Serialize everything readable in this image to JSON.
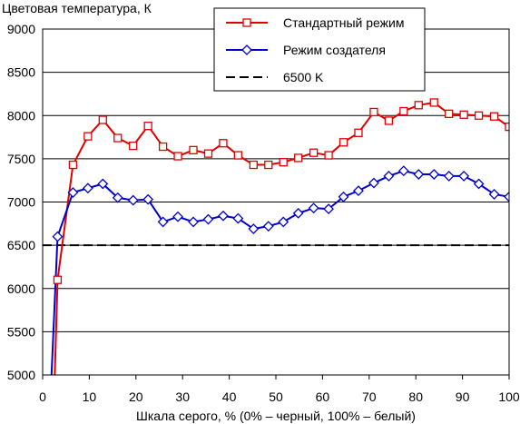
{
  "chart_data": {
    "type": "line",
    "ylabel": "Цветовая температура, К",
    "xlabel": "Шкала серого, % (0% – черный, 100% – белый)",
    "xlim": [
      0,
      100
    ],
    "ylim": [
      5000,
      9000
    ],
    "xticks": [
      0,
      10,
      20,
      30,
      40,
      50,
      60,
      70,
      80,
      90,
      100
    ],
    "yticks": [
      5000,
      5500,
      6000,
      6500,
      7000,
      7500,
      8000,
      8500,
      9000
    ],
    "grid": "horizontal",
    "legend_position": "top-right",
    "legend": [
      {
        "label": "Стандартный режим",
        "color": "#e00000",
        "marker": "square",
        "style": "solid"
      },
      {
        "label": "Режим создателя",
        "color": "#0000cc",
        "marker": "diamond",
        "style": "solid"
      },
      {
        "label": "6500 K",
        "color": "#000000",
        "marker": "none",
        "style": "dashed"
      }
    ],
    "series": [
      {
        "name": "Стандартный режим",
        "color": "#e00000",
        "marker": "square",
        "x": [
          3.2,
          6.5,
          9.7,
          12.9,
          16.1,
          19.4,
          22.6,
          25.8,
          29.0,
          32.3,
          35.5,
          38.7,
          41.9,
          45.2,
          48.4,
          51.6,
          54.8,
          58.1,
          61.3,
          64.5,
          67.7,
          71.0,
          74.2,
          77.4,
          80.6,
          83.9,
          87.1,
          90.3,
          93.5,
          96.8,
          100.0
        ],
        "y": [
          6100,
          7430,
          7760,
          7950,
          7740,
          7650,
          7880,
          7640,
          7530,
          7600,
          7560,
          7680,
          7540,
          7430,
          7430,
          7460,
          7510,
          7570,
          7540,
          7690,
          7800,
          8040,
          7940,
          8050,
          8120,
          8150,
          8020,
          8010,
          8000,
          7990,
          7870
        ]
      },
      {
        "name": "Режим создателя",
        "color": "#0000cc",
        "marker": "diamond",
        "x": [
          3.2,
          6.5,
          9.7,
          12.9,
          16.1,
          19.4,
          22.6,
          25.8,
          29.0,
          32.3,
          35.5,
          38.7,
          41.9,
          45.2,
          48.4,
          51.6,
          54.8,
          58.1,
          61.3,
          64.5,
          67.7,
          71.0,
          74.2,
          77.4,
          80.6,
          83.9,
          87.1,
          90.3,
          93.5,
          96.8,
          100.0
        ],
        "y": [
          6600,
          7110,
          7160,
          7210,
          7050,
          7020,
          7030,
          6770,
          6830,
          6770,
          6800,
          6840,
          6810,
          6690,
          6720,
          6770,
          6870,
          6930,
          6920,
          7060,
          7130,
          7220,
          7300,
          7360,
          7320,
          7320,
          7300,
          7300,
          7210,
          7090,
          7060
        ]
      },
      {
        "name": "6500 K",
        "color": "#000000",
        "marker": "none",
        "dashed": true,
        "x": [
          0,
          100
        ],
        "y": [
          6500,
          6500
        ]
      }
    ],
    "steep_start": {
      "Стандартный режим": {
        "x": [
          2.6,
          3.2
        ],
        "y": [
          5000,
          6100
        ]
      },
      "Режим создателя": {
        "x": [
          1.9,
          3.2
        ],
        "y": [
          5000,
          6600
        ]
      }
    }
  }
}
